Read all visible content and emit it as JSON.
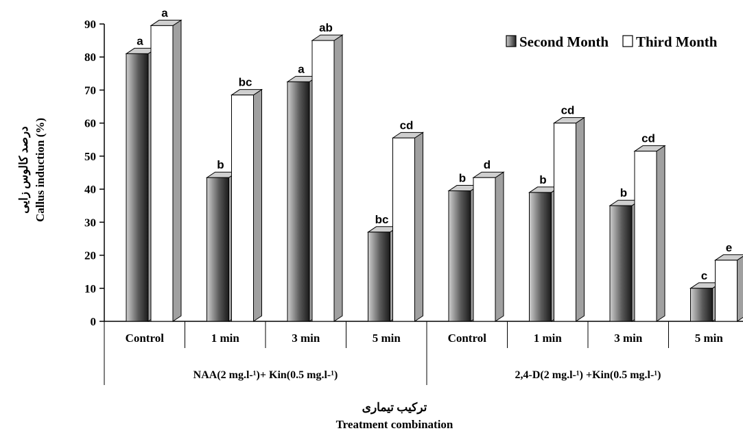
{
  "chart_data": {
    "type": "bar",
    "categories": [
      "Control",
      "1 min",
      "3 min",
      "5 min",
      "Control",
      "1 min",
      "3 min",
      "5 min"
    ],
    "groups": [
      {
        "label": "NAA(2 mg.l-¹)+ Kin(0.5 mg.l-¹)",
        "start": 0,
        "end": 3
      },
      {
        "label": "2,4-D(2 mg.l-¹) +Kin(0.5 mg.l-¹)",
        "start": 4,
        "end": 7
      }
    ],
    "series": [
      {
        "name": "Second Month",
        "values": [
          81,
          43.5,
          72.5,
          27,
          39.5,
          39,
          35,
          10
        ],
        "letters": [
          "a",
          "b",
          "a",
          "bc",
          "b",
          "b",
          "b",
          "c"
        ],
        "color": "#3a3a3a"
      },
      {
        "name": "Third Month",
        "values": [
          89.5,
          68.5,
          85,
          55.5,
          43.5,
          60,
          51.5,
          18.5
        ],
        "letters": [
          "a",
          "bc",
          "ab",
          "cd",
          "d",
          "cd",
          "cd",
          "e"
        ],
        "color": "#ffffff"
      }
    ],
    "ylim": [
      0,
      90
    ],
    "yticks": [
      0,
      10,
      20,
      30,
      40,
      50,
      60,
      70,
      80,
      90
    ],
    "ylabel_fa": "درصد کالوس زایی",
    "ylabel": "Callus induction (%)",
    "xlabel_fa": "ترکیب تیماری",
    "xlabel": "Treatment combination",
    "legend_position": "top-right",
    "grid": false
  }
}
